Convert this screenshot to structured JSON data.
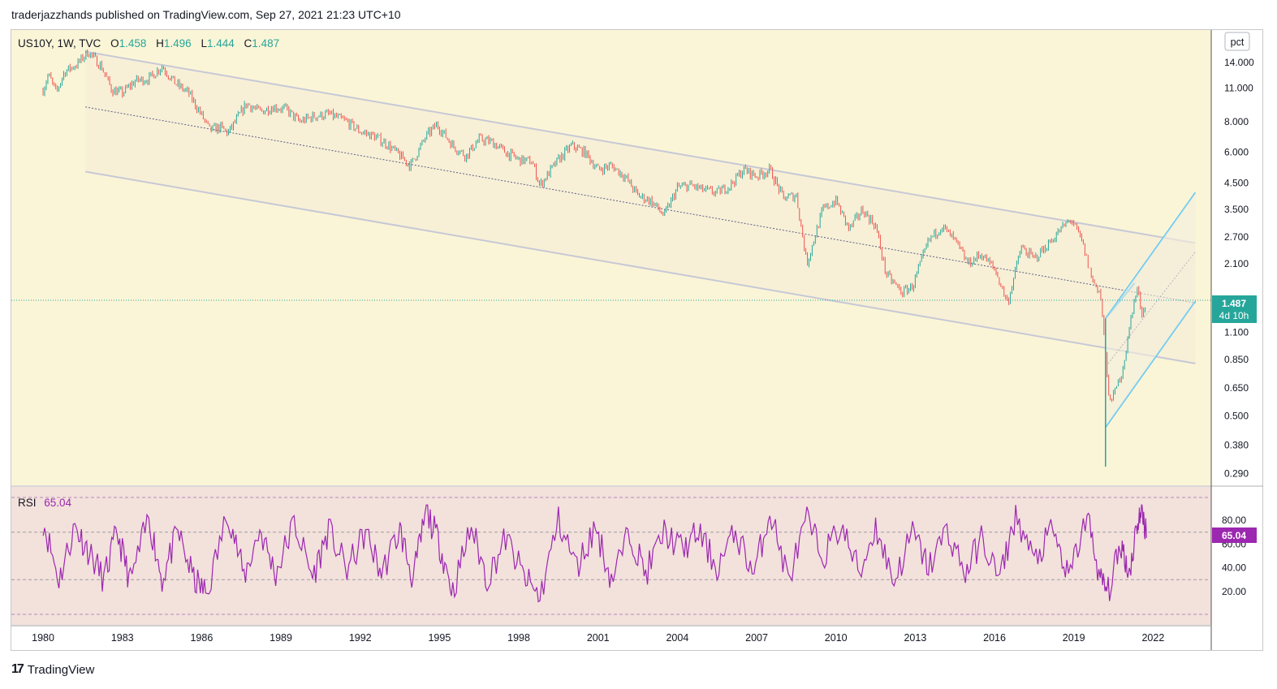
{
  "header": {
    "publisher_line": "traderjazzhands published on TradingView.com, Sep 27, 2021 21:23 UTC+10"
  },
  "legend": {
    "symbol": "US10Y, 1W, TVC",
    "o_label": "O",
    "o": "1.458",
    "h_label": "H",
    "h": "1.496",
    "l_label": "L",
    "l": "1.444",
    "c_label": "C",
    "c": "1.487"
  },
  "unit_button": "pct",
  "price_badge": {
    "value": "1.487",
    "countdown": "4d 10h"
  },
  "rsi": {
    "label": "RSI",
    "value": "65.04",
    "badge": "65.04",
    "ticks": [
      "80.00",
      "60.00",
      "40.00",
      "20.00"
    ]
  },
  "footer": {
    "brand": "TradingView",
    "logo_text": "17"
  },
  "colors": {
    "background": "#fbf5d7",
    "rsi_background": "#f3e1dc",
    "up": "#26a69a",
    "down": "#ef5350",
    "rsi_line": "#9c27b0",
    "channel": "#c7c8d6",
    "pitchfork": "#4fc3f7"
  },
  "chart_data": {
    "type": "line",
    "title": "",
    "xlabel": "",
    "ylabel": "",
    "log_scale": true,
    "ylim": [
      0.26,
      19.0
    ],
    "xlim": [
      1978.8,
      2024.2
    ],
    "y_ticks": [
      "14.000",
      "11.000",
      "8.000",
      "6.000",
      "4.500",
      "3.500",
      "2.700",
      "2.100",
      "1.100",
      "0.850",
      "0.650",
      "0.500",
      "0.380",
      "0.290"
    ],
    "x_ticks": [
      "1980",
      "1983",
      "1986",
      "1989",
      "1992",
      "1995",
      "1998",
      "2001",
      "2004",
      "2007",
      "2010",
      "2013",
      "2016",
      "2019",
      "2022"
    ],
    "series": [
      {
        "x": [
          1980.0,
          1980.2,
          1980.5,
          1980.8,
          1981.3,
          1981.7,
          1982.2,
          1982.6,
          1983.0,
          1983.5,
          1984.0,
          1984.5,
          1985.0,
          1985.5,
          1986.0,
          1986.3,
          1986.7,
          1987.0,
          1987.7,
          1988.2,
          1988.7,
          1989.2,
          1989.7,
          1990.2,
          1990.8,
          1991.5,
          1992.0,
          1992.5,
          1993.0,
          1993.5,
          1993.9,
          1994.5,
          1994.9,
          1995.5,
          1996.0,
          1996.5,
          1997.0,
          1997.5,
          1998.0,
          1998.5,
          1998.8,
          1999.5,
          2000.0,
          2000.5,
          2001.0,
          2001.5,
          2002.0,
          2002.5,
          2003.0,
          2003.5,
          2004.0,
          2004.5,
          2005.0,
          2005.5,
          2006.0,
          2006.5,
          2007.0,
          2007.5,
          2008.0,
          2008.5,
          2008.9,
          2009.5,
          2010.0,
          2010.5,
          2011.0,
          2011.5,
          2011.9,
          2012.5,
          2012.9,
          2013.5,
          2014.0,
          2014.5,
          2015.0,
          2015.5,
          2016.0,
          2016.5,
          2017.0,
          2017.5,
          2018.0,
          2018.5,
          2018.9,
          2019.3,
          2019.7,
          2020.0,
          2020.2,
          2020.3,
          2020.5,
          2020.8,
          2021.0,
          2021.2,
          2021.4,
          2021.6,
          2021.75
        ],
        "values": [
          10.8,
          12.5,
          10.5,
          12.8,
          13.8,
          15.5,
          13.5,
          10.8,
          10.5,
          11.8,
          12.0,
          13.5,
          11.5,
          10.5,
          8.5,
          7.4,
          7.6,
          7.2,
          9.5,
          8.8,
          9.2,
          9.0,
          8.0,
          8.4,
          8.6,
          8.0,
          7.3,
          7.0,
          6.5,
          5.8,
          5.3,
          7.0,
          7.8,
          6.4,
          5.8,
          6.8,
          6.6,
          6.0,
          5.6,
          5.5,
          4.4,
          5.6,
          6.4,
          6.0,
          5.1,
          5.3,
          4.8,
          4.0,
          3.8,
          3.3,
          4.3,
          4.4,
          4.2,
          4.1,
          4.4,
          5.1,
          4.8,
          5.1,
          3.9,
          4.0,
          2.1,
          3.5,
          3.8,
          2.9,
          3.5,
          3.0,
          1.9,
          1.6,
          1.7,
          2.6,
          3.0,
          2.6,
          2.1,
          2.3,
          2.0,
          1.45,
          2.45,
          2.2,
          2.5,
          2.9,
          3.2,
          2.6,
          1.8,
          1.6,
          0.9,
          0.6,
          0.6,
          0.75,
          0.95,
          1.35,
          1.65,
          1.3,
          1.487
        ]
      }
    ],
    "rsi_series": {
      "name": "RSI",
      "ylim": [
        0,
        100
      ],
      "ref_lines": [
        70,
        30
      ],
      "x": [
        1980.0,
        1980.6,
        1981.2,
        1981.7,
        1982.3,
        1982.8,
        1983.3,
        1984.0,
        1984.5,
        1985.1,
        1985.7,
        1986.2,
        1987.0,
        1987.6,
        1988.2,
        1988.8,
        1989.5,
        1990.2,
        1990.8,
        1991.5,
        1992.2,
        1992.8,
        1993.5,
        1994.0,
        1994.5,
        1995.0,
        1995.5,
        1996.2,
        1996.8,
        1997.5,
        1998.2,
        1998.8,
        1999.5,
        2000.2,
        2000.9,
        2001.5,
        2002.2,
        2002.8,
        2003.5,
        2004.2,
        2004.8,
        2005.5,
        2006.2,
        2006.9,
        2007.5,
        2008.2,
        2008.9,
        2009.5,
        2010.2,
        2010.9,
        2011.5,
        2012.2,
        2012.9,
        2013.5,
        2014.2,
        2014.9,
        2015.5,
        2016.2,
        2016.8,
        2017.5,
        2018.2,
        2018.8,
        2019.5,
        2020.0,
        2020.3,
        2020.8,
        2021.1,
        2021.4,
        2021.6,
        2021.75
      ],
      "values": [
        80,
        30,
        75,
        55,
        30,
        70,
        28,
        82,
        30,
        70,
        30,
        18,
        88,
        32,
        72,
        35,
        78,
        32,
        72,
        38,
        70,
        35,
        72,
        30,
        88,
        60,
        20,
        75,
        30,
        65,
        32,
        15,
        80,
        40,
        75,
        30,
        70,
        35,
        70,
        55,
        70,
        40,
        70,
        35,
        88,
        30,
        80,
        50,
        75,
        35,
        75,
        28,
        70,
        40,
        72,
        35,
        65,
        30,
        85,
        45,
        72,
        30,
        85,
        30,
        20,
        60,
        35,
        78,
        88,
        65.04
      ]
    }
  }
}
